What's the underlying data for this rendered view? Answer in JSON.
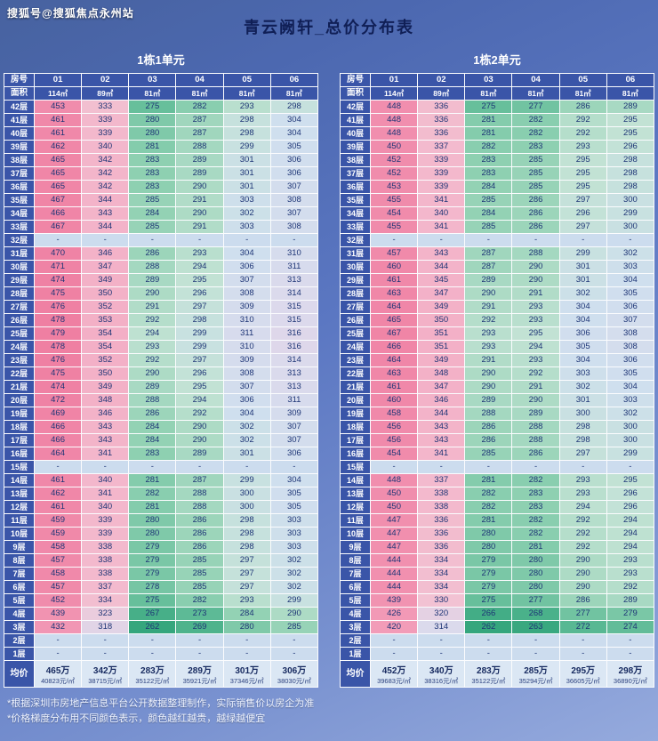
{
  "watermark": "搜狐号@搜狐焦点永州站",
  "title": "青云阙轩_总价分布表",
  "notes": [
    "*根据深圳市房地产信息平台公开数据整理制作，实际销售价以房企为准",
    "*价格梯度分布用不同颜色表示，颜色越红越贵，越绿越便宜"
  ],
  "colors": {
    "background_top": "#47629f",
    "background_bottom": "#95aadd",
    "header": "#3a55a8",
    "header_text": "#ffffff",
    "cell_text": "#1e3576",
    "title_text": "#101f56",
    "note_text": "#eef3ff",
    "empty_cell": "#ccdcee",
    "average_cell": "#dbe7f4",
    "scale": [
      {
        "value": 262,
        "color": "#35a67d"
      },
      {
        "value": 272,
        "color": "#58b893"
      },
      {
        "value": 284,
        "color": "#93d2b4"
      },
      {
        "value": 295,
        "color": "#c2e2d4"
      },
      {
        "value": 304,
        "color": "#cfdfee"
      },
      {
        "value": 315,
        "color": "#dcd9ec"
      },
      {
        "value": 328,
        "color": "#f2c4d4"
      },
      {
        "value": 345,
        "color": "#f3b2c8"
      },
      {
        "value": 420,
        "color": "#f29cb8"
      },
      {
        "value": 479,
        "color": "#ef7fa2"
      }
    ]
  },
  "chart_data": [
    {
      "type": "table",
      "title": "1栋1单元",
      "corner_labels": {
        "room": "房号",
        "area": "面积"
      },
      "columns": [
        "01",
        "02",
        "03",
        "04",
        "05",
        "06"
      ],
      "areas": [
        "114㎡",
        "89㎡",
        "81㎡",
        "81㎡",
        "81㎡",
        "81㎡"
      ],
      "floors": [
        "42层",
        "41层",
        "40层",
        "39层",
        "38层",
        "37层",
        "36层",
        "35层",
        "34层",
        "33层",
        "32层",
        "31层",
        "30层",
        "29层",
        "28层",
        "27层",
        "26层",
        "25层",
        "24层",
        "23层",
        "22层",
        "21层",
        "20层",
        "19层",
        "18层",
        "17层",
        "16层",
        "15层",
        "14层",
        "13层",
        "12层",
        "11层",
        "10层",
        "9层",
        "8层",
        "7层",
        "6层",
        "5层",
        "4层",
        "3层",
        "2层",
        "1层"
      ],
      "values": [
        [
          453,
          333,
          275,
          282,
          293,
          298
        ],
        [
          461,
          339,
          280,
          287,
          298,
          304
        ],
        [
          461,
          339,
          280,
          287,
          298,
          304
        ],
        [
          462,
          340,
          281,
          288,
          299,
          305
        ],
        [
          465,
          342,
          283,
          289,
          301,
          306
        ],
        [
          465,
          342,
          283,
          289,
          301,
          306
        ],
        [
          465,
          342,
          283,
          290,
          301,
          307
        ],
        [
          467,
          344,
          285,
          291,
          303,
          308
        ],
        [
          466,
          343,
          284,
          290,
          302,
          307
        ],
        [
          467,
          344,
          285,
          291,
          303,
          308
        ],
        [
          "-",
          "-",
          "-",
          "-",
          "-",
          "-"
        ],
        [
          470,
          346,
          286,
          293,
          304,
          310
        ],
        [
          471,
          347,
          288,
          294,
          306,
          311
        ],
        [
          474,
          349,
          289,
          295,
          307,
          313
        ],
        [
          475,
          350,
          290,
          296,
          308,
          314
        ],
        [
          476,
          352,
          291,
          297,
          309,
          315
        ],
        [
          478,
          353,
          292,
          298,
          310,
          315
        ],
        [
          479,
          354,
          294,
          299,
          311,
          316
        ],
        [
          478,
          354,
          293,
          299,
          310,
          316
        ],
        [
          476,
          352,
          292,
          297,
          309,
          314
        ],
        [
          475,
          350,
          290,
          296,
          308,
          313
        ],
        [
          474,
          349,
          289,
          295,
          307,
          313
        ],
        [
          472,
          348,
          288,
          294,
          306,
          311
        ],
        [
          469,
          346,
          286,
          292,
          304,
          309
        ],
        [
          466,
          343,
          284,
          290,
          302,
          307
        ],
        [
          466,
          343,
          284,
          290,
          302,
          307
        ],
        [
          464,
          341,
          283,
          289,
          301,
          306
        ],
        [
          "-",
          "-",
          "-",
          "-",
          "-",
          "-"
        ],
        [
          461,
          340,
          281,
          287,
          299,
          304
        ],
        [
          462,
          341,
          282,
          288,
          300,
          305
        ],
        [
          461,
          340,
          281,
          288,
          300,
          305
        ],
        [
          459,
          339,
          280,
          286,
          298,
          303
        ],
        [
          459,
          339,
          280,
          286,
          298,
          303
        ],
        [
          458,
          338,
          279,
          286,
          298,
          303
        ],
        [
          457,
          338,
          279,
          285,
          297,
          302
        ],
        [
          458,
          338,
          279,
          285,
          297,
          302
        ],
        [
          457,
          337,
          278,
          285,
          297,
          302
        ],
        [
          452,
          334,
          275,
          282,
          293,
          299
        ],
        [
          439,
          323,
          267,
          273,
          284,
          290
        ],
        [
          432,
          318,
          262,
          269,
          280,
          285
        ],
        [
          "-",
          "-",
          "-",
          "-",
          "-",
          "-"
        ],
        [
          "-",
          "-",
          "-",
          "-",
          "-",
          "-"
        ]
      ],
      "average_label": "均价",
      "average_total": [
        "465万",
        "342万",
        "283万",
        "289万",
        "301万",
        "306万"
      ],
      "average_unit": [
        "40823元/㎡",
        "38715元/㎡",
        "35122元/㎡",
        "35921元/㎡",
        "37346元/㎡",
        "38030元/㎡"
      ]
    },
    {
      "type": "table",
      "title": "1栋2单元",
      "corner_labels": {
        "room": "房号",
        "area": "面积"
      },
      "columns": [
        "01",
        "02",
        "03",
        "04",
        "05",
        "06"
      ],
      "areas": [
        "114㎡",
        "89㎡",
        "81㎡",
        "81㎡",
        "81㎡",
        "81㎡"
      ],
      "floors": [
        "42层",
        "41层",
        "40层",
        "39层",
        "38层",
        "37层",
        "36层",
        "35层",
        "34层",
        "33层",
        "32层",
        "31层",
        "30层",
        "29层",
        "28层",
        "27层",
        "26层",
        "25层",
        "24层",
        "23层",
        "22层",
        "21层",
        "20层",
        "19层",
        "18层",
        "17层",
        "16层",
        "15层",
        "14层",
        "13层",
        "12层",
        "11层",
        "10层",
        "9层",
        "8层",
        "7层",
        "6层",
        "5层",
        "4层",
        "3层",
        "2层",
        "1层"
      ],
      "values": [
        [
          448,
          336,
          275,
          277,
          286,
          289
        ],
        [
          448,
          336,
          281,
          282,
          292,
          295
        ],
        [
          448,
          336,
          281,
          282,
          292,
          295
        ],
        [
          450,
          337,
          282,
          283,
          293,
          296
        ],
        [
          452,
          339,
          283,
          285,
          295,
          298
        ],
        [
          452,
          339,
          283,
          285,
          295,
          298
        ],
        [
          453,
          339,
          284,
          285,
          295,
          298
        ],
        [
          455,
          341,
          285,
          286,
          297,
          300
        ],
        [
          454,
          340,
          284,
          286,
          296,
          299
        ],
        [
          455,
          341,
          285,
          286,
          297,
          300
        ],
        [
          "-",
          "-",
          "-",
          "-",
          "-",
          "-"
        ],
        [
          457,
          343,
          287,
          288,
          299,
          302
        ],
        [
          460,
          344,
          287,
          290,
          301,
          303
        ],
        [
          461,
          345,
          289,
          290,
          301,
          304
        ],
        [
          463,
          347,
          290,
          291,
          302,
          305
        ],
        [
          464,
          349,
          291,
          293,
          304,
          306
        ],
        [
          465,
          350,
          292,
          293,
          304,
          307
        ],
        [
          467,
          351,
          293,
          295,
          306,
          308
        ],
        [
          466,
          351,
          293,
          294,
          305,
          308
        ],
        [
          464,
          349,
          291,
          293,
          304,
          306
        ],
        [
          463,
          348,
          290,
          292,
          303,
          305
        ],
        [
          461,
          347,
          290,
          291,
          302,
          304
        ],
        [
          460,
          346,
          289,
          290,
          301,
          303
        ],
        [
          458,
          344,
          288,
          289,
          300,
          302
        ],
        [
          456,
          343,
          286,
          288,
          298,
          300
        ],
        [
          456,
          343,
          286,
          288,
          298,
          300
        ],
        [
          454,
          341,
          285,
          286,
          297,
          299
        ],
        [
          "-",
          "-",
          "-",
          "-",
          "-",
          "-"
        ],
        [
          448,
          337,
          281,
          282,
          293,
          295
        ],
        [
          450,
          338,
          282,
          283,
          293,
          296
        ],
        [
          450,
          338,
          282,
          283,
          294,
          296
        ],
        [
          447,
          336,
          281,
          282,
          292,
          294
        ],
        [
          447,
          336,
          280,
          282,
          292,
          294
        ],
        [
          447,
          336,
          280,
          281,
          292,
          294
        ],
        [
          444,
          334,
          279,
          280,
          290,
          293
        ],
        [
          444,
          334,
          279,
          280,
          290,
          293
        ],
        [
          444,
          334,
          279,
          280,
          290,
          292
        ],
        [
          439,
          330,
          275,
          277,
          286,
          289
        ],
        [
          426,
          320,
          266,
          268,
          277,
          279
        ],
        [
          420,
          314,
          262,
          263,
          272,
          274
        ],
        [
          "-",
          "-",
          "-",
          "-",
          "-",
          "-"
        ],
        [
          "-",
          "-",
          "-",
          "-",
          "-",
          "-"
        ]
      ],
      "average_label": "均价",
      "average_total": [
        "452万",
        "340万",
        "283万",
        "285万",
        "295万",
        "298万"
      ],
      "average_unit": [
        "39683元/㎡",
        "38316元/㎡",
        "35122元/㎡",
        "35294元/㎡",
        "36605元/㎡",
        "36890元/㎡"
      ]
    }
  ]
}
